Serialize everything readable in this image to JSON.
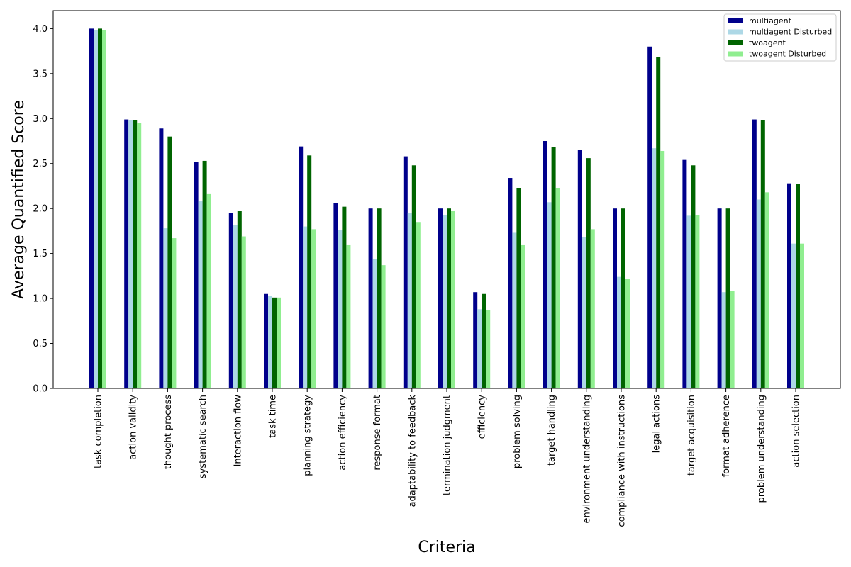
{
  "chart_data": {
    "type": "bar",
    "title": "",
    "xlabel": "Criteria",
    "ylabel": "Average Quantified Score",
    "ylim": [
      0,
      4.2
    ],
    "yticks": [
      0.0,
      0.5,
      1.0,
      1.5,
      2.0,
      2.5,
      3.0,
      3.5,
      4.0
    ],
    "ytick_labels": [
      "0.0",
      "0.5",
      "1.0",
      "1.5",
      "2.0",
      "2.5",
      "3.0",
      "3.5",
      "4.0"
    ],
    "grid": false,
    "legend_position": "top-right",
    "categories": [
      "task completion",
      "action validity",
      "thought process",
      "systematic search",
      "interaction flow",
      "task time",
      "planning strategy",
      "action efficiency",
      "response format",
      "adaptability to feedback",
      "termination judgment",
      "efficiency",
      "problem solving",
      "target handling",
      "environment understanding",
      "compliance with instructions",
      "legal actions",
      "target acquisition",
      "format adherence",
      "problem understanding",
      "action selection"
    ],
    "series": [
      {
        "name": "multiagent",
        "color": "#00008b",
        "values": [
          4.0,
          2.99,
          2.89,
          2.52,
          1.95,
          1.05,
          2.69,
          2.06,
          2.0,
          2.58,
          2.0,
          1.07,
          2.34,
          2.75,
          2.65,
          2.0,
          3.8,
          2.54,
          2.0,
          2.99,
          2.28
        ]
      },
      {
        "name": "multiagent Disturbed",
        "color": "#add8e6",
        "values": [
          3.98,
          2.98,
          1.78,
          2.08,
          1.82,
          1.03,
          1.8,
          1.76,
          1.44,
          1.95,
          1.93,
          0.88,
          1.73,
          2.07,
          1.68,
          1.24,
          2.67,
          1.92,
          1.07,
          2.1,
          1.61
        ]
      },
      {
        "name": "twoagent",
        "color": "#006400",
        "values": [
          4.0,
          2.98,
          2.8,
          2.53,
          1.97,
          1.01,
          2.59,
          2.02,
          2.0,
          2.48,
          2.0,
          1.05,
          2.23,
          2.68,
          2.56,
          2.0,
          3.68,
          2.48,
          2.0,
          2.98,
          2.27
        ]
      },
      {
        "name": "twoagent Disturbed",
        "color": "#90ee90",
        "values": [
          3.98,
          2.95,
          1.67,
          2.16,
          1.69,
          1.01,
          1.77,
          1.6,
          1.37,
          1.85,
          1.97,
          0.87,
          1.6,
          2.23,
          1.77,
          1.22,
          2.64,
          1.93,
          1.08,
          2.18,
          1.61
        ]
      }
    ]
  }
}
